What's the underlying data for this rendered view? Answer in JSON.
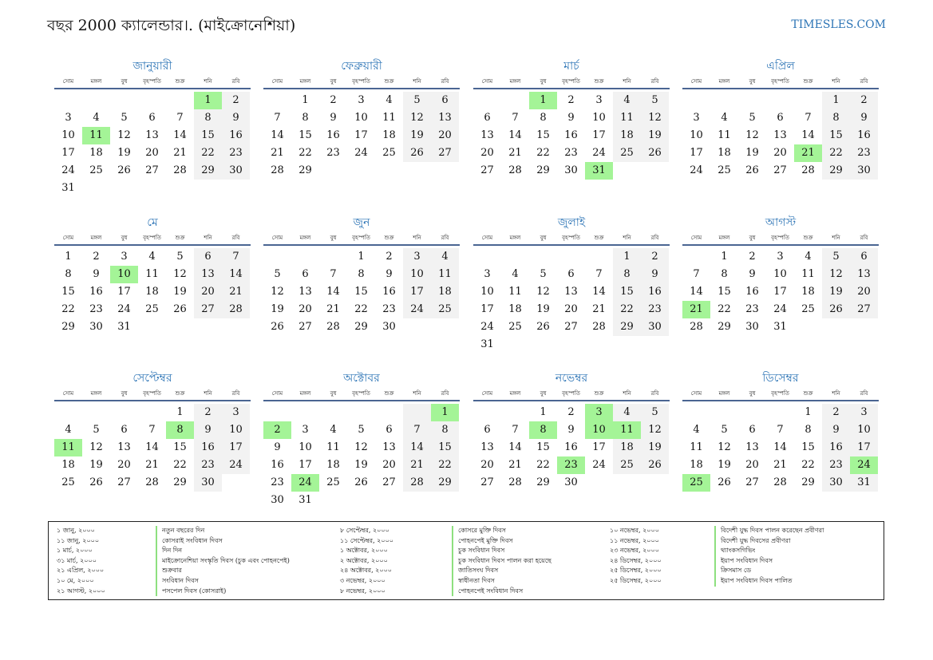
{
  "header": {
    "title": "বছর 2000 ক্যালেন্ডার।. (মাইক্রোনেশিয়া)",
    "site": "TIMESLES.COM"
  },
  "weekdays": [
    "সোম",
    "মঙ্গল",
    "বুধ",
    "বৃহস্পতি",
    "শুক্র",
    "শনি",
    "রবি"
  ],
  "colors": {
    "accent": "#2e75b6",
    "holiday": "#a4f497",
    "weekend": "#f2f2f2",
    "rule": "#4a6592"
  },
  "months": [
    {
      "name": "জানুয়ারী",
      "offset": 5,
      "days": 31,
      "holidays": [
        1,
        11
      ]
    },
    {
      "name": "ফেব্রুয়ারী",
      "offset": 1,
      "days": 29,
      "holidays": []
    },
    {
      "name": "মার্চ",
      "offset": 2,
      "days": 31,
      "holidays": [
        1,
        31
      ]
    },
    {
      "name": "এপ্রিল",
      "offset": 5,
      "days": 30,
      "holidays": [
        21
      ]
    },
    {
      "name": "মে",
      "offset": 0,
      "days": 31,
      "holidays": [
        10
      ]
    },
    {
      "name": "জুন",
      "offset": 3,
      "days": 30,
      "holidays": []
    },
    {
      "name": "জুলাই",
      "offset": 5,
      "days": 31,
      "holidays": []
    },
    {
      "name": "আগস্ট",
      "offset": 1,
      "days": 31,
      "holidays": [
        21
      ]
    },
    {
      "name": "সেপ্টেম্বর",
      "offset": 4,
      "days": 30,
      "holidays": [
        8,
        11
      ]
    },
    {
      "name": "অক্টোবর",
      "offset": 6,
      "days": 31,
      "holidays": [
        1,
        2,
        24
      ]
    },
    {
      "name": "নভেম্বর",
      "offset": 2,
      "days": 30,
      "holidays": [
        3,
        8,
        10,
        11,
        23
      ]
    },
    {
      "name": "ডিসেম্বর",
      "offset": 4,
      "days": 31,
      "holidays": [
        24,
        25
      ]
    }
  ],
  "legend": [
    {
      "date": "১ জানু, ২০০০",
      "name": "নতুন বছরের দিন"
    },
    {
      "date": "১১ জানু, ২০০০",
      "name": "কোসরাই সংবিধান দিবস"
    },
    {
      "date": "১ মার্চ, ২০০০",
      "name": "দিন দিন"
    },
    {
      "date": "৩১ মার্চ, ২০০০",
      "name": "মাইক্রোনেশিয়া সংস্কৃতি দিবস (চুক এবং পোহনপেই)"
    },
    {
      "date": "২১ এপ্রিল, ২০০০",
      "name": "শুক্রবার"
    },
    {
      "date": "১০ মে, ২০০০",
      "name": "সংবিধান দিবস"
    },
    {
      "date": "২১ আগস্ট, ২০০০",
      "name": "পসপেল দিবস (কোসরাই)"
    },
    {
      "date": "৮ সেপ্টেম্বর, ২০০০",
      "name": "কোসরে মুক্তি দিবস"
    },
    {
      "date": "১১ সেপ্টেম্বর, ২০০০",
      "name": "পোহনপেই মুক্তি দিবস"
    },
    {
      "date": "১ অক্টোবর, ২০০০",
      "name": "চুক সংবিধান দিবস"
    },
    {
      "date": "২ অক্টোবর, ২০০০",
      "name": "চুক সংবিধান দিবস পালন করা হয়েছে"
    },
    {
      "date": "২৪ অক্টোবর, ২০০০",
      "name": "জাতিসংঘ দিবস"
    },
    {
      "date": "৩ নভেম্বর, ২০০০",
      "name": "স্বাধীনতা দিবস"
    },
    {
      "date": "৮ নভেম্বর, ২০০০",
      "name": "পোহনপেই সংবিধান দিবস"
    },
    {
      "date": "১০ নভেম্বর, ২০০০",
      "name": "বিদেশী যুদ্ধ দিবস পালন করেছেন প্রবীণরা"
    },
    {
      "date": "১১ নভেম্বর, ২০০০",
      "name": "বিদেশী যুদ্ধ দিবসের প্রবীণরা"
    },
    {
      "date": "২৩ নভেম্বর, ২০০০",
      "name": "থ্যাংকসগিভিং"
    },
    {
      "date": "২৪ ডিসেম্বর, ২০০০",
      "name": "ইয়াপ সংবিধান দিবস"
    },
    {
      "date": "২৫ ডিসেম্বর, ২০০০",
      "name": "ক্রিসমাস ডে"
    },
    {
      "date": "২৫ ডিসেম্বর, ২০০০",
      "name": "ইয়াপ সংবিধান দিবস পালিত"
    }
  ]
}
